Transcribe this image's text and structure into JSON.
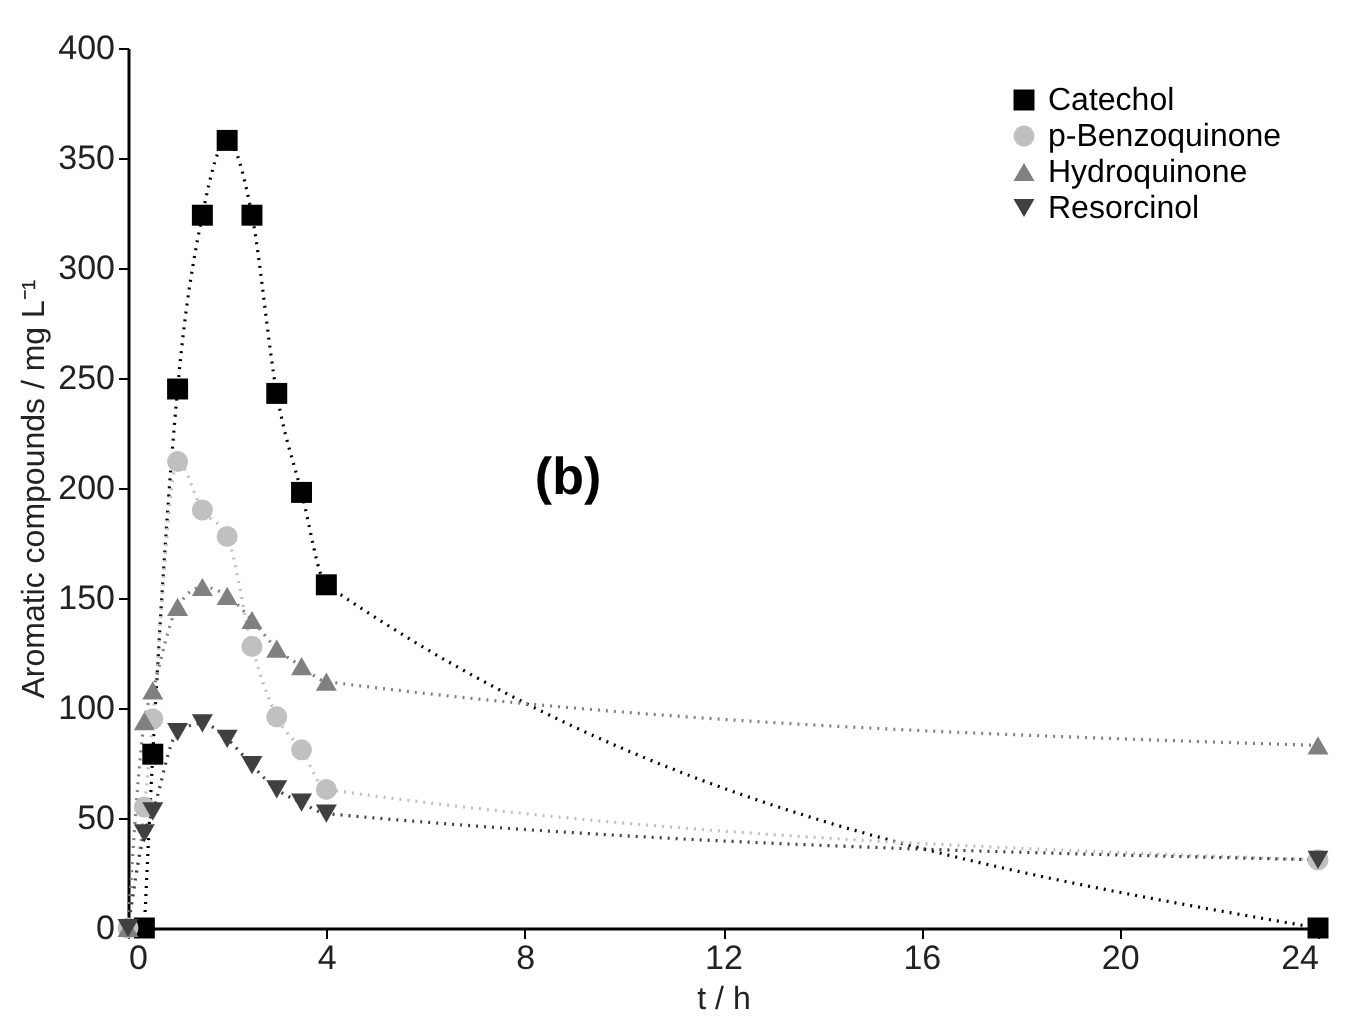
{
  "chart_data": {
    "type": "line",
    "xlabel": "t / h",
    "ylabel": "Aromatic compounds / mg L⁻¹",
    "annotations": [
      "(b)"
    ],
    "xlim": [
      0,
      24
    ],
    "xticks": [
      0,
      4,
      8,
      12,
      16,
      20,
      24
    ],
    "ylim": [
      0,
      400
    ],
    "yticks": [
      0,
      50,
      100,
      150,
      200,
      250,
      300,
      350,
      400
    ],
    "grid": false,
    "legend": "top right",
    "line_style": "dotted",
    "series": [
      {
        "name": "Catechol",
        "color": "#000000",
        "marker": "square",
        "x": [
          0.33,
          0.5,
          1,
          1.5,
          2,
          2.5,
          3,
          3.5,
          4,
          24
        ],
        "values": [
          0,
          79,
          245,
          324,
          358,
          324,
          243,
          198,
          156,
          0
        ]
      },
      {
        "name": "p-Benzoquinone",
        "color": "#c0c0c0",
        "marker": "circle",
        "x": [
          0,
          0.33,
          0.5,
          1,
          1.5,
          2,
          2.5,
          3,
          3.5,
          4,
          24
        ],
        "values": [
          0,
          55,
          95,
          212,
          190,
          178,
          128,
          96,
          81,
          63,
          31
        ]
      },
      {
        "name": "Hydroquinone",
        "color": "#808080",
        "marker": "triangle",
        "x": [
          0,
          0.33,
          0.5,
          1,
          1.5,
          2,
          2.5,
          3,
          3.5,
          4,
          24
        ],
        "values": [
          0,
          94,
          108,
          146,
          155,
          151,
          140,
          127,
          119,
          112,
          83
        ]
      },
      {
        "name": "Resorcinol",
        "color": "#404040",
        "marker": "triangle-down",
        "x": [
          0,
          0.33,
          0.5,
          1,
          1.5,
          2,
          2.5,
          3,
          3.5,
          4,
          24
        ],
        "values": [
          0,
          43,
          53,
          89,
          93,
          86,
          74,
          63,
          57,
          52,
          31
        ]
      }
    ]
  }
}
